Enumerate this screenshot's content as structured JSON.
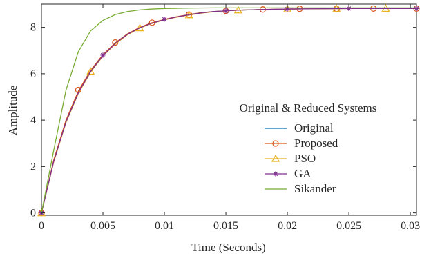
{
  "chart_data": {
    "type": "line",
    "title": "",
    "xlabel": "Time (Seconds)",
    "ylabel": "Amplitude",
    "xlim": [
      0,
      0.0305
    ],
    "ylim": [
      -0.1,
      9.0
    ],
    "xticks": [
      0,
      0.005,
      0.01,
      0.015,
      0.02,
      0.025,
      0.03
    ],
    "xtick_labels": [
      "0",
      "0.005",
      "0.01",
      "0.015",
      "0.02",
      "0.025",
      "0.03"
    ],
    "yticks": [
      0,
      2,
      4,
      6,
      8
    ],
    "ytick_labels": [
      "0",
      "2",
      "4",
      "6",
      "8"
    ],
    "grid": false,
    "legend": {
      "title": "Original & Reduced Systems",
      "placement": "right"
    },
    "series": [
      {
        "name": "Original",
        "color": "#0072BD",
        "marker": "none",
        "x": [
          0,
          0.001,
          0.002,
          0.003,
          0.004,
          0.005,
          0.006,
          0.007,
          0.008,
          0.009,
          0.01,
          0.011,
          0.012,
          0.013,
          0.014,
          0.015,
          0.016,
          0.018,
          0.02,
          0.022,
          0.025,
          0.0305
        ],
        "y": [
          0,
          2.25,
          3.95,
          5.2,
          6.1,
          6.78,
          7.3,
          7.7,
          7.98,
          8.18,
          8.33,
          8.45,
          8.55,
          8.63,
          8.68,
          8.71,
          8.74,
          8.77,
          8.79,
          8.8,
          8.81,
          8.81
        ]
      },
      {
        "name": "Proposed",
        "color": "#D95319",
        "marker": "circle",
        "x": [
          0,
          0.001,
          0.002,
          0.003,
          0.004,
          0.005,
          0.006,
          0.007,
          0.008,
          0.009,
          0.01,
          0.011,
          0.012,
          0.013,
          0.014,
          0.015,
          0.016,
          0.018,
          0.02,
          0.022,
          0.025,
          0.0305
        ],
        "y": [
          0,
          2.28,
          4.0,
          5.25,
          6.15,
          6.82,
          7.33,
          7.72,
          8.0,
          8.2,
          8.34,
          8.46,
          8.55,
          8.63,
          8.68,
          8.71,
          8.74,
          8.77,
          8.79,
          8.8,
          8.81,
          8.81
        ],
        "marker_x": [
          0,
          0.003,
          0.006,
          0.009,
          0.012,
          0.015,
          0.018,
          0.021,
          0.024,
          0.027,
          0.0305
        ],
        "marker_y": [
          0,
          5.3,
          7.35,
          8.2,
          8.55,
          8.71,
          8.77,
          8.8,
          8.8,
          8.81,
          8.81
        ]
      },
      {
        "name": "PSO",
        "color": "#EDB120",
        "marker": "triangle",
        "x": [
          0,
          0.001,
          0.002,
          0.003,
          0.004,
          0.005,
          0.006,
          0.007,
          0.008,
          0.009,
          0.01,
          0.011,
          0.012,
          0.013,
          0.014,
          0.015,
          0.016,
          0.018,
          0.02,
          0.022,
          0.025,
          0.0305
        ],
        "y": [
          0,
          2.2,
          3.9,
          5.15,
          6.07,
          6.76,
          7.28,
          7.68,
          7.97,
          8.17,
          8.32,
          8.44,
          8.53,
          8.61,
          8.67,
          8.71,
          8.74,
          8.77,
          8.79,
          8.8,
          8.81,
          8.81
        ],
        "marker_x": [
          0,
          0.004,
          0.008,
          0.012,
          0.016,
          0.02,
          0.024,
          0.028
        ],
        "marker_y": [
          0,
          6.1,
          7.97,
          8.53,
          8.74,
          8.79,
          8.8,
          8.81
        ]
      },
      {
        "name": "GA",
        "color": "#7E2F8E",
        "marker": "star",
        "x": [
          0,
          0.001,
          0.002,
          0.003,
          0.004,
          0.005,
          0.006,
          0.007,
          0.008,
          0.009,
          0.01,
          0.011,
          0.012,
          0.013,
          0.014,
          0.015,
          0.016,
          0.018,
          0.02,
          0.022,
          0.025,
          0.0305
        ],
        "y": [
          0,
          2.22,
          3.93,
          5.18,
          6.09,
          6.78,
          7.3,
          7.7,
          7.98,
          8.18,
          8.33,
          8.45,
          8.54,
          8.62,
          8.68,
          8.71,
          8.74,
          8.77,
          8.79,
          8.8,
          8.81,
          8.81
        ],
        "marker_x": [
          0,
          0.005,
          0.01,
          0.015,
          0.02,
          0.025,
          0.0305
        ],
        "marker_y": [
          0,
          6.8,
          8.35,
          8.71,
          8.79,
          8.81,
          8.81
        ]
      },
      {
        "name": "Sikander",
        "color": "#77AC30",
        "marker": "none",
        "x": [
          0,
          0.001,
          0.002,
          0.003,
          0.004,
          0.005,
          0.006,
          0.007,
          0.008,
          0.009,
          0.01,
          0.012,
          0.014,
          0.016,
          0.02,
          0.025,
          0.0305
        ],
        "y": [
          0,
          2.7,
          5.3,
          6.95,
          7.85,
          8.3,
          8.55,
          8.68,
          8.75,
          8.79,
          8.81,
          8.83,
          8.84,
          8.84,
          8.84,
          8.84,
          8.84
        ]
      }
    ]
  }
}
